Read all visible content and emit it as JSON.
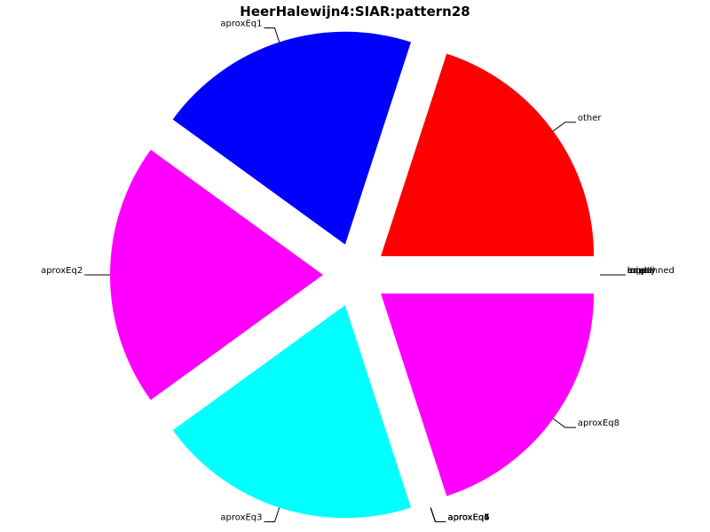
{
  "chart_data": {
    "type": "pie",
    "title": "HeerHalewijn4:SIAR:pattern28",
    "slices": [
      {
        "label": "other",
        "value": 20,
        "color": "#ff0000"
      },
      {
        "label": "aproxEq1",
        "value": 20,
        "color": "#0000ff"
      },
      {
        "label": "aproxEq2",
        "value": 20,
        "color": "#ff00ff"
      },
      {
        "label": "aproxEq3",
        "value": 20,
        "color": "#00ffff"
      },
      {
        "label": "aproxEq4",
        "value": 0,
        "color": "#00ff00"
      },
      {
        "label": "aproxEq5",
        "value": 0,
        "color": "#ffff00"
      },
      {
        "label": "aproxEq6",
        "value": 0,
        "color": "#000000"
      },
      {
        "label": "aproxEq7",
        "value": 0,
        "color": "#00ffff"
      },
      {
        "label": "aproxEq8",
        "value": 20,
        "color": "#ff00ff"
      },
      {
        "label": "unplanned",
        "value": 0,
        "color": "#ff0000"
      },
      {
        "label": "loop",
        "value": 0,
        "color": "#0000ff"
      },
      {
        "label": "equal",
        "value": 0,
        "color": "#00ff00"
      },
      {
        "label": "mixed",
        "value": 0,
        "color": "#ffff00"
      },
      {
        "label": "empty",
        "value": 0,
        "color": "#000000"
      }
    ],
    "start_angle_deg": 0,
    "direction": "counterclockwise",
    "legend": "none"
  }
}
